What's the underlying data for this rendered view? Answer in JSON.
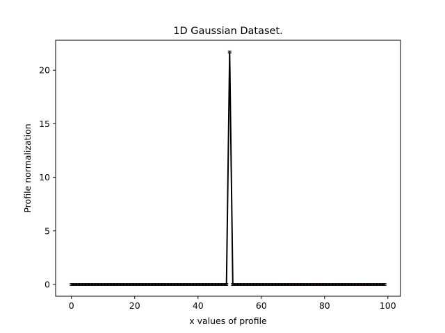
{
  "chart_data": {
    "type": "line",
    "title": "1D Gaussian Dataset.",
    "xlabel": "x values of profile",
    "ylabel": "Profile normalization",
    "xlim": [
      -5,
      104
    ],
    "ylim": [
      -1.1,
      22.8
    ],
    "xticks": [
      0,
      20,
      40,
      60,
      80,
      100
    ],
    "yticks": [
      0,
      5,
      10,
      15,
      20
    ],
    "grid": false,
    "legend": "none",
    "series": [
      {
        "color": "#000000",
        "error_color": "#8b2a1a",
        "x": [
          0,
          1,
          2,
          3,
          4,
          5,
          6,
          7,
          8,
          9,
          10,
          11,
          12,
          13,
          14,
          15,
          16,
          17,
          18,
          19,
          20,
          21,
          22,
          23,
          24,
          25,
          26,
          27,
          28,
          29,
          30,
          31,
          32,
          33,
          34,
          35,
          36,
          37,
          38,
          39,
          40,
          41,
          42,
          43,
          44,
          45,
          46,
          47,
          48,
          49,
          50,
          51,
          52,
          53,
          54,
          55,
          56,
          57,
          58,
          59,
          60,
          61,
          62,
          63,
          64,
          65,
          66,
          67,
          68,
          69,
          70,
          71,
          72,
          73,
          74,
          75,
          76,
          77,
          78,
          79,
          80,
          81,
          82,
          83,
          84,
          85,
          86,
          87,
          88,
          89,
          90,
          91,
          92,
          93,
          94,
          95,
          96,
          97,
          98,
          99
        ],
        "y": [
          0,
          0,
          0,
          0,
          0,
          0,
          0,
          0,
          0,
          0,
          0,
          0,
          0,
          0,
          0,
          0,
          0,
          0,
          0,
          0,
          0,
          0,
          0,
          0,
          0,
          0,
          0,
          0,
          0,
          0,
          0,
          0,
          0,
          0,
          0,
          0,
          0,
          0,
          0,
          0,
          0,
          0,
          0,
          0,
          0,
          0,
          0,
          0,
          0,
          0,
          21.7,
          0,
          0,
          0,
          0,
          0,
          0,
          0,
          0,
          0,
          0,
          0,
          0,
          0,
          0,
          0,
          0,
          0,
          0,
          0,
          0,
          0,
          0,
          0,
          0,
          0,
          0,
          0,
          0,
          0,
          0,
          0,
          0,
          0,
          0,
          0,
          0,
          0,
          0,
          0,
          0,
          0,
          0,
          0,
          0,
          0,
          0,
          0,
          0,
          0
        ],
        "yerr": 0.08
      }
    ]
  }
}
